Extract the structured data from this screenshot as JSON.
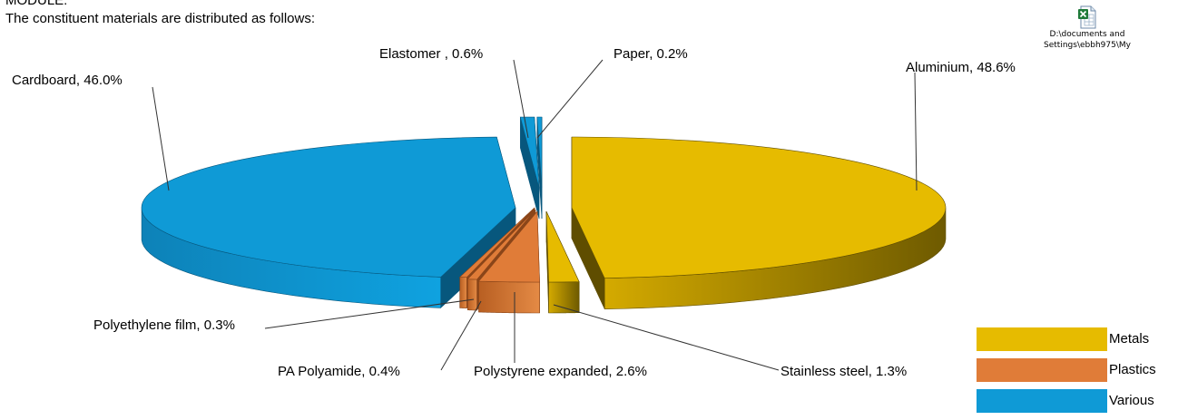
{
  "text": {
    "heading_cut": "MODULE:",
    "intro": "The constituent materials are distributed as follows:"
  },
  "file_icon": {
    "name": "excel-file-icon",
    "caption_line1": "D:\\documents and",
    "caption_line2": "Settings\\ebbh975\\My"
  },
  "legend": [
    {
      "label": "Metals",
      "color": "#e6bb00"
    },
    {
      "label": "Plastics",
      "color": "#e07c38"
    },
    {
      "label": "Various",
      "color": "#0f9ad6"
    }
  ],
  "chart_data": {
    "type": "pie",
    "style": "3d-exploded",
    "slices": [
      {
        "label": "Aluminium, 48.6%",
        "value": 48.6,
        "group": "Metals"
      },
      {
        "label": "Stainless steel, 1.3%",
        "value": 1.3,
        "group": "Metals"
      },
      {
        "label": "Polystyrene expanded, 2.6%",
        "value": 2.6,
        "group": "Plastics"
      },
      {
        "label": "PA Polyamide, 0.4%",
        "value": 0.4,
        "group": "Plastics"
      },
      {
        "label": "Polyethylene film, 0.3%",
        "value": 0.3,
        "group": "Plastics"
      },
      {
        "label": "Cardboard, 46.0%",
        "value": 46.0,
        "group": "Various"
      },
      {
        "label": "Elastomer , 0.6%",
        "value": 0.6,
        "group": "Various"
      },
      {
        "label": "Paper, 0.2%",
        "value": 0.2,
        "group": "Various"
      }
    ],
    "groups": [
      {
        "name": "Metals",
        "color": "#e6bb00"
      },
      {
        "name": "Plastics",
        "color": "#e07c38"
      },
      {
        "name": "Various",
        "color": "#0f9ad6"
      }
    ]
  }
}
